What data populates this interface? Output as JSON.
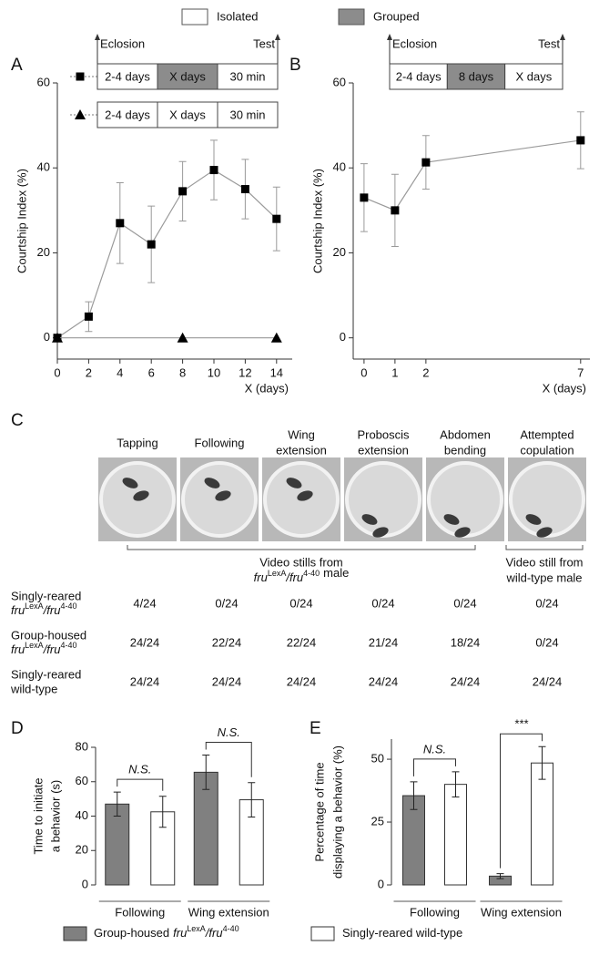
{
  "legend": {
    "conditions": [
      {
        "name": "Isolated",
        "color": "#ffffff"
      },
      {
        "name": "Grouped",
        "color": "#8c8c8c"
      }
    ]
  },
  "chart_data": [
    {
      "type": "line",
      "label": "A",
      "xlabel": "X (days)",
      "ylabel": "Courtship Index (%)",
      "xlim": [
        0,
        15
      ],
      "ylim": [
        -5,
        60
      ],
      "xticks": [
        0,
        2,
        4,
        6,
        8,
        10,
        12,
        14
      ],
      "yticks": [
        0,
        20,
        40,
        60
      ],
      "schematic": {
        "start": "Eclosion",
        "end": "Test",
        "rows": [
          {
            "marker": "square",
            "cells": [
              {
                "text": "2-4 days",
                "color": "#ffffff"
              },
              {
                "text": "X days",
                "color": "#8c8c8c"
              },
              {
                "text": "30 min",
                "color": "#ffffff"
              }
            ]
          },
          {
            "marker": "triangle",
            "cells": [
              {
                "text": "2-4 days",
                "color": "#ffffff"
              },
              {
                "text": "X days",
                "color": "#ffffff"
              },
              {
                "text": "30 min",
                "color": "#ffffff"
              }
            ]
          }
        ]
      },
      "series": [
        {
          "marker": "square",
          "color": "#000000",
          "line_color": "#9a9a9a",
          "x": [
            0,
            2,
            4,
            6,
            8,
            10,
            12,
            14
          ],
          "values": [
            0,
            5,
            27,
            22,
            34.5,
            39.5,
            35,
            28
          ],
          "errors": [
            0,
            3.5,
            9.5,
            9,
            7,
            7,
            7,
            7.5
          ]
        },
        {
          "marker": "triangle",
          "color": "#000000",
          "line_color": "#9a9a9a",
          "x": [
            0,
            8,
            14
          ],
          "values": [
            0,
            0,
            0
          ]
        }
      ]
    },
    {
      "type": "line",
      "label": "B",
      "xlabel": "X (days)",
      "ylabel": "Courtship Index (%)",
      "xlim": [
        -0.35,
        7.3
      ],
      "ylim": [
        -5,
        60
      ],
      "xticks": [
        0,
        1,
        2,
        7
      ],
      "yticks": [
        0,
        20,
        40,
        60
      ],
      "schematic": {
        "start": "Eclosion",
        "end": "Test",
        "rows": [
          {
            "cells": [
              {
                "text": "2-4 days",
                "color": "#ffffff"
              },
              {
                "text": "8 days",
                "color": "#8c8c8c"
              },
              {
                "text": "X days",
                "color": "#ffffff"
              }
            ]
          }
        ]
      },
      "series": [
        {
          "marker": "square",
          "color": "#000000",
          "line_color": "#9a9a9a",
          "x": [
            0,
            1,
            2,
            7
          ],
          "values": [
            33,
            30,
            41.3,
            46.5
          ],
          "errors": [
            8,
            8.5,
            6.3,
            6.7
          ]
        }
      ]
    },
    {
      "type": "bar",
      "label": "D",
      "ylabel": [
        "Time to initiate",
        "a behavior (s)"
      ],
      "categories": [
        "Following",
        "Wing extension"
      ],
      "ylim": [
        0,
        80
      ],
      "yticks": [
        0,
        20,
        40,
        60,
        80
      ],
      "series": [
        {
          "name": "Group-housed",
          "genotype": [
            "fru",
            "LexA",
            "/fru",
            "4-40"
          ],
          "color": "#808080",
          "values": [
            47,
            65.5
          ],
          "errors": [
            7,
            10
          ]
        },
        {
          "name": "Singly-reared wild-type",
          "color": "#ffffff",
          "values": [
            42.5,
            49.5
          ],
          "errors": [
            9,
            10
          ]
        }
      ],
      "annotations": [
        {
          "text": "N.S.",
          "category": 0
        },
        {
          "text": "N.S.",
          "category": 1
        }
      ]
    },
    {
      "type": "bar",
      "label": "E",
      "ylabel": [
        "Percentage of time",
        "displaying a behavior (%)"
      ],
      "categories": [
        "Following",
        "Wing extension"
      ],
      "ylim": [
        0,
        58
      ],
      "yticks": [
        0,
        25,
        50
      ],
      "series": [
        {
          "name": "Group-housed",
          "genotype": [
            "fru",
            "LexA",
            "/fru",
            "4-40"
          ],
          "color": "#808080",
          "values": [
            35.5,
            3.5
          ],
          "errors": [
            5.5,
            1
          ]
        },
        {
          "name": "Singly-reared wild-type",
          "color": "#ffffff",
          "values": [
            40,
            48.5
          ],
          "errors": [
            5,
            6.5
          ]
        }
      ],
      "annotations": [
        {
          "text": "N.S.",
          "category": 0
        },
        {
          "text": "***",
          "category": 1
        }
      ]
    }
  ],
  "behavior_panel": {
    "label": "C",
    "behaviors": [
      [
        "Tapping"
      ],
      [
        "Following"
      ],
      [
        "Wing",
        "extension"
      ],
      [
        "Proboscis",
        "extension"
      ],
      [
        "Abdomen",
        "bending"
      ],
      [
        "Attempted",
        "copulation"
      ]
    ],
    "captions": [
      {
        "line1": "Video stills from",
        "genotype": [
          "fru",
          "LexA",
          "/fru",
          "4-40"
        ],
        "suffix": "male"
      },
      {
        "line1": "Video still from",
        "line2": "wild-type male"
      }
    ],
    "rows": [
      {
        "line1": "Singly-reared",
        "genotype": [
          "fru",
          "LexA",
          "/fru",
          "4-40"
        ],
        "values": [
          "4/24",
          "0/24",
          "0/24",
          "0/24",
          "0/24",
          "0/24"
        ]
      },
      {
        "line1": "Group-housed",
        "genotype": [
          "fru",
          "LexA",
          "/fru",
          "4-40"
        ],
        "values": [
          "24/24",
          "22/24",
          "22/24",
          "21/24",
          "18/24",
          "0/24"
        ]
      },
      {
        "line1": "Singly-reared",
        "line2": "wild-type",
        "values": [
          "24/24",
          "24/24",
          "24/24",
          "24/24",
          "24/24",
          "24/24"
        ]
      }
    ]
  }
}
